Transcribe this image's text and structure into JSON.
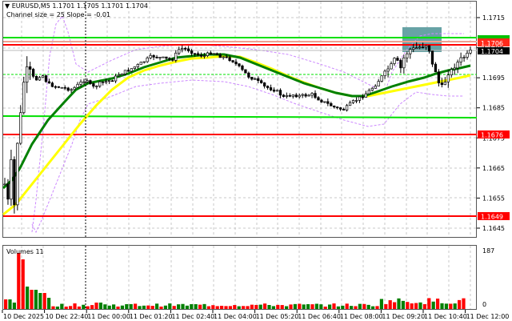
{
  "header": {
    "symbol_line": "EURUSD,M5  1.1701 1.1705 1.1701 1.1704",
    "indicator_line": "Channel size = 25 Slope = -0.01"
  },
  "volume_pane": {
    "label": "Volumes 11",
    "axis_max": "187",
    "axis_min": "0"
  },
  "price_axis": {
    "ticks": [
      "1.1715",
      "1.1705",
      "1.1695",
      "1.1685",
      "1.1675",
      "1.1665",
      "1.1655",
      "1.1645"
    ]
  },
  "price_tags": {
    "green_level": "1.1707",
    "red_level": "1.1706",
    "current_price": "1.1704",
    "support_1": "1.1676",
    "support_2": "1.1649"
  },
  "time_axis": {
    "labels": [
      "10 Dec 2025",
      "10 Dec 22:40",
      "11 Dec 00:00",
      "11 Dec 01:20",
      "11 Dec 02:40",
      "11 Dec 04:00",
      "11 Dec 05:20",
      "11 Dec 06:40",
      "11 Dec 08:00",
      "11 Dec 09:20",
      "11 Dec 10:40",
      "11 Dec 12:00"
    ]
  },
  "colors": {
    "bull_volume": "#008000",
    "bear_volume": "#ff0000",
    "ma_fast": "#008000",
    "ma_slow": "#ffff00",
    "channel": "#cc88ff",
    "resistance_green": "#00e000",
    "resistance_red": "#ff0000",
    "zone_box": "#5f9ea0",
    "current_price_tag": "#000000"
  },
  "chart_data": {
    "type": "candlestick",
    "title": "EURUSD,M5",
    "ohlc_last": {
      "open": 1.1701,
      "high": 1.1705,
      "low": 1.1701,
      "close": 1.1704
    },
    "indicator": {
      "name": "Channel",
      "size": 25,
      "slope": -0.01
    },
    "ylim": [
      1.1641,
      1.172
    ],
    "y_ticks": [
      1.1715,
      1.1705,
      1.1695,
      1.1685,
      1.1675,
      1.1665,
      1.1655,
      1.1645
    ],
    "x_labels": [
      "10 Dec 2025",
      "10 Dec 22:40",
      "11 Dec 00:00",
      "11 Dec 01:20",
      "11 Dec 02:40",
      "11 Dec 04:00",
      "11 Dec 05:20",
      "11 Dec 06:40",
      "11 Dec 08:00",
      "11 Dec 09:20",
      "11 Dec 10:40",
      "11 Dec 12:00"
    ],
    "horizontal_levels": [
      {
        "price": 1.1707,
        "color": "green",
        "label": "1.1707"
      },
      {
        "price": 1.1706,
        "color": "red",
        "label": "1.1706"
      },
      {
        "price": 1.1676,
        "color": "red",
        "label": "1.1676"
      },
      {
        "price": 1.1649,
        "color": "red",
        "label": "1.1649"
      }
    ],
    "current_price": 1.1704,
    "close_series_approx": [
      1.166,
      1.1652,
      1.167,
      1.169,
      1.1693,
      1.169,
      1.1688,
      1.1686,
      1.1688,
      1.169,
      1.1695,
      1.17,
      1.1702,
      1.1704,
      1.1703,
      1.17,
      1.1697,
      1.1693,
      1.1689,
      1.1687,
      1.1688,
      1.1686,
      1.1684,
      1.1688,
      1.1693,
      1.17,
      1.1704,
      1.1706,
      1.17,
      1.1692,
      1.1688,
      1.1695,
      1.17,
      1.1702,
      1.1704
    ],
    "volume": {
      "max": 187,
      "min": 0,
      "label": "Volumes 11"
    }
  }
}
